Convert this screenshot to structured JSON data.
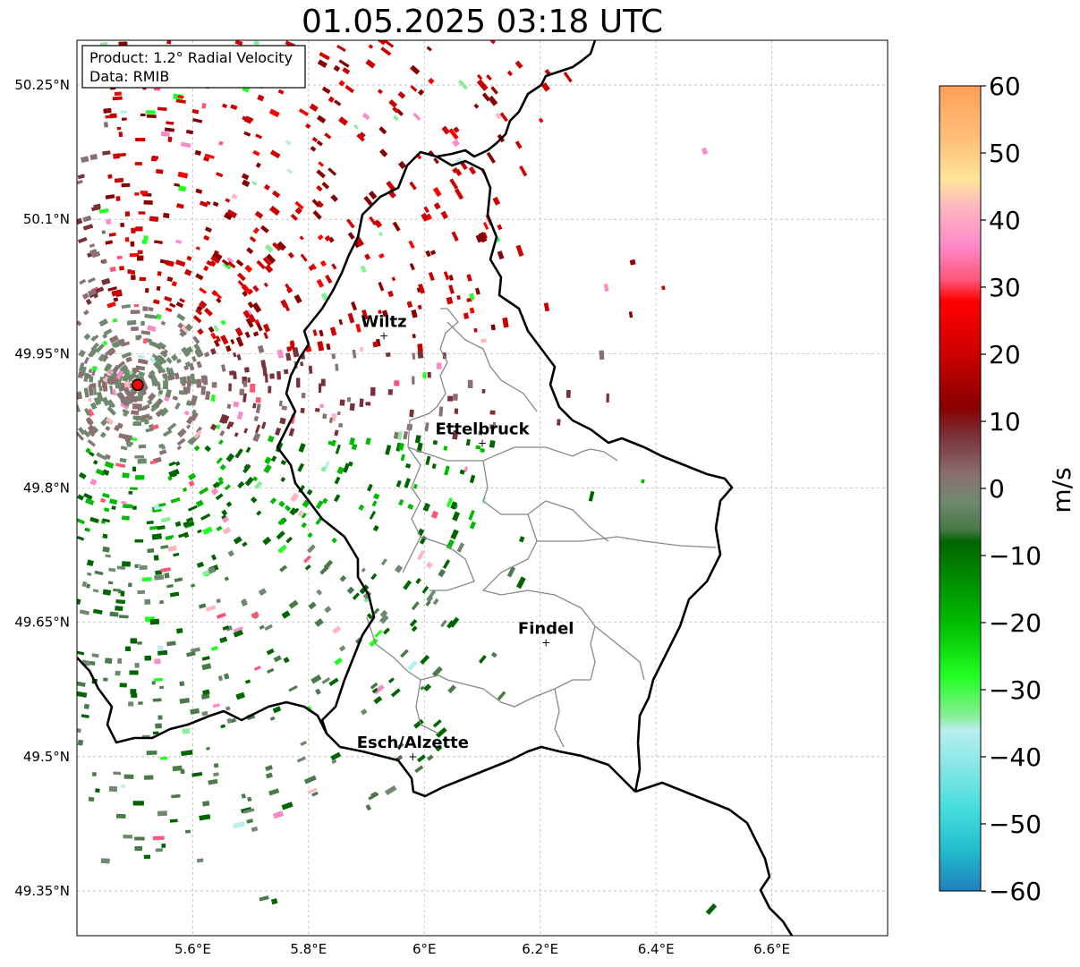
{
  "title": "01.05.2025 03:18 UTC",
  "info_box": {
    "product_line": "Product: 1.2° Radial Velocity",
    "data_line": "Data: RMIB"
  },
  "map": {
    "lon_range": [
      5.4,
      6.8
    ],
    "lat_range": [
      49.3,
      50.3
    ],
    "lat_ticks": [
      {
        "value": 50.25,
        "label": "50.25°N"
      },
      {
        "value": 50.1,
        "label": "50.1°N"
      },
      {
        "value": 49.95,
        "label": "49.95°N"
      },
      {
        "value": 49.8,
        "label": "49.8°N"
      },
      {
        "value": 49.65,
        "label": "49.65°N"
      },
      {
        "value": 49.5,
        "label": "49.5°N"
      },
      {
        "value": 49.35,
        "label": "49.35°N"
      }
    ],
    "lon_ticks": [
      {
        "value": 5.6,
        "label": "5.6°E"
      },
      {
        "value": 5.8,
        "label": "5.8°E"
      },
      {
        "value": 6.0,
        "label": "6°E"
      },
      {
        "value": 6.2,
        "label": "6.2°E"
      },
      {
        "value": 6.4,
        "label": "6.4°E"
      },
      {
        "value": 6.6,
        "label": "6.6°E"
      }
    ],
    "gridlines": true,
    "radar_site": {
      "lon": 5.505,
      "lat": 49.915,
      "marker": "red-dot"
    },
    "cities": [
      {
        "name": "Wiltz",
        "lon": 5.93,
        "lat": 49.97
      },
      {
        "name": "Ettelbruck",
        "lon": 6.1,
        "lat": 49.85
      },
      {
        "name": "Findel",
        "lon": 6.21,
        "lat": 49.627
      },
      {
        "name": "Esch/Alzette",
        "lon": 5.98,
        "lat": 49.5
      }
    ]
  },
  "colorbar": {
    "label": "m/s",
    "min": -60,
    "max": 60,
    "ticks": [
      60,
      50,
      40,
      30,
      20,
      10,
      0,
      -10,
      -20,
      -30,
      -40,
      -50,
      -60
    ],
    "tick_labels": [
      "60",
      "50",
      "40",
      "30",
      "20",
      "10",
      "0",
      "−10",
      "−20",
      "−30",
      "−40",
      "−50",
      "−60"
    ],
    "stops": [
      {
        "v": 60,
        "c": "#ff9f5a"
      },
      {
        "v": 52,
        "c": "#ffc07a"
      },
      {
        "v": 46,
        "c": "#ffe59a"
      },
      {
        "v": 42,
        "c": "#ffb6c1"
      },
      {
        "v": 36,
        "c": "#ff88c8"
      },
      {
        "v": 31,
        "c": "#ff5577"
      },
      {
        "v": 28,
        "c": "#ff0000"
      },
      {
        "v": 20,
        "c": "#cc0000"
      },
      {
        "v": 12,
        "c": "#880000"
      },
      {
        "v": 8,
        "c": "#7a3038"
      },
      {
        "v": 2,
        "c": "#8a7070"
      },
      {
        "v": -2,
        "c": "#6e8a6e"
      },
      {
        "v": -6,
        "c": "#4a7a4a"
      },
      {
        "v": -8,
        "c": "#006400"
      },
      {
        "v": -20,
        "c": "#00bb00"
      },
      {
        "v": -28,
        "c": "#22ff22"
      },
      {
        "v": -34,
        "c": "#88ee99"
      },
      {
        "v": -36,
        "c": "#bbeeee"
      },
      {
        "v": -48,
        "c": "#44dddd"
      },
      {
        "v": -54,
        "c": "#22bbcc"
      },
      {
        "v": -60,
        "c": "#2080c0"
      }
    ]
  }
}
